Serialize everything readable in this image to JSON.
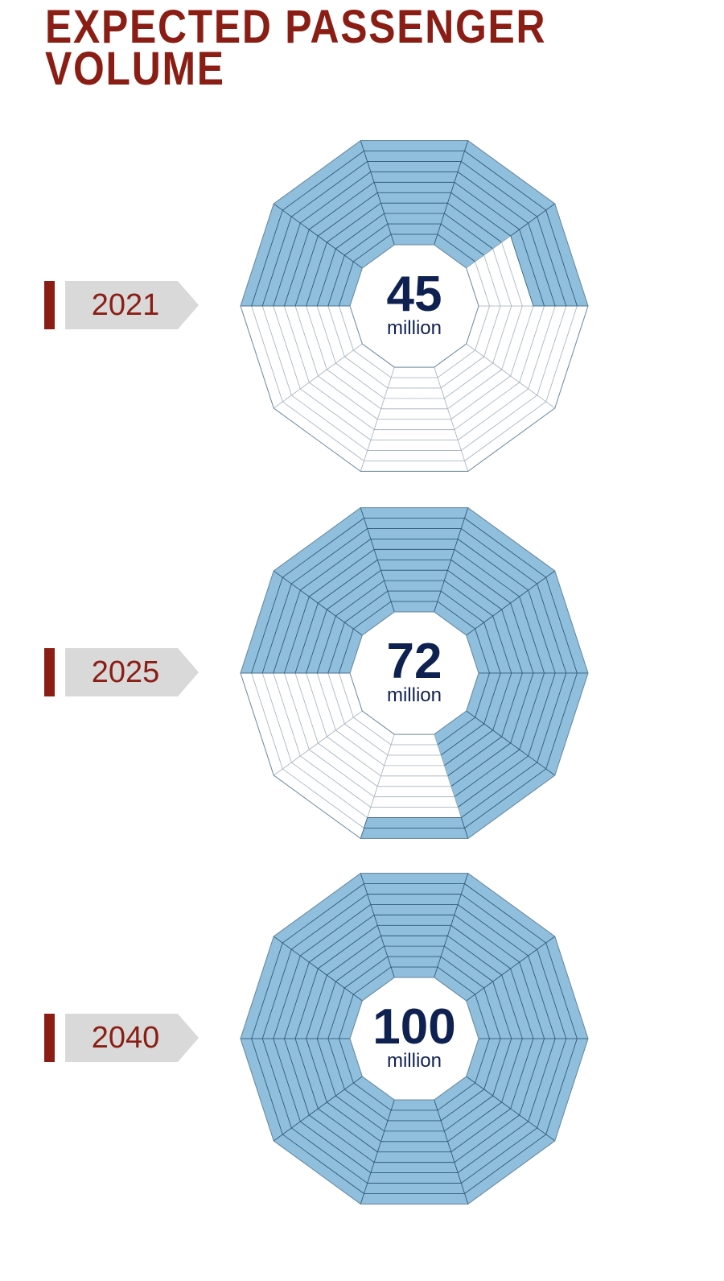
{
  "title": [
    "EXPECTED PASSENGER",
    "VOLUME"
  ],
  "colors": {
    "title": "#8b1e14",
    "fill": "#8fbfdd",
    "empty": "#ffffff",
    "line": "#2f5a78",
    "text": "#0f2150",
    "tag": "#d9d9d9"
  },
  "chart_data": {
    "type": "pictogram-decagon",
    "max_value": 100,
    "unit": "million",
    "categories": [
      "2021",
      "2025",
      "2040"
    ],
    "values": [
      45,
      72,
      100
    ],
    "center_labels": [
      "45",
      "72",
      "100"
    ]
  }
}
